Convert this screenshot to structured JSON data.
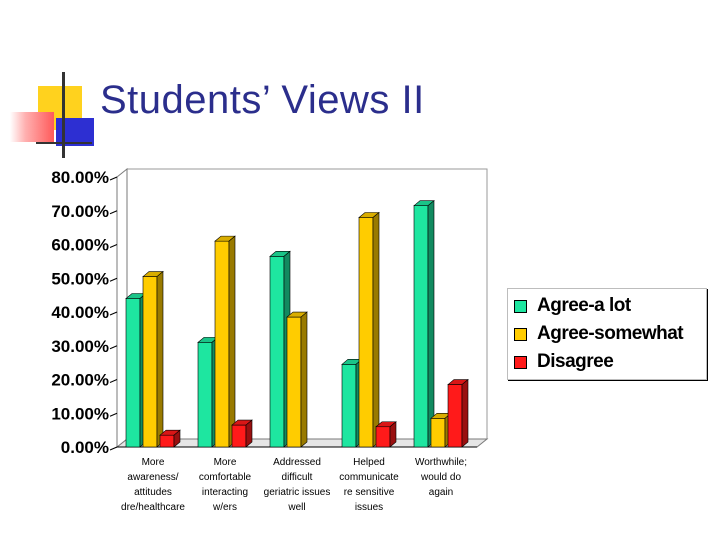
{
  "slide": {
    "title": "Students’ Views II"
  },
  "colors": {
    "title": "#2b2e8c",
    "deco_yellow": "#ffd21e",
    "deco_blue": "#2d2fd2",
    "deco_red": "#ff5a5a"
  },
  "chart_data": {
    "type": "bar",
    "categories": [
      [
        "More",
        "awareness/",
        "attitudes",
        "dre/healthcare"
      ],
      [
        "More",
        "comfortable",
        "interacting",
        "w/ers"
      ],
      [
        "Addressed",
        "difficult",
        "geriatric issues",
        "well"
      ],
      [
        "Helped",
        "communicate",
        "re sensitive",
        "issues"
      ],
      [
        "Worthwhile;",
        "would do",
        "again"
      ]
    ],
    "series": [
      {
        "name": "Agree-a lot",
        "color": "#1ee6a0",
        "values": [
          44,
          31,
          56.5,
          24.5,
          71.5
        ]
      },
      {
        "name": "Agree-somewhat",
        "color": "#ffcc00",
        "values": [
          50.5,
          61,
          38.5,
          68,
          8.5
        ]
      },
      {
        "name": "Disagree",
        "color": "#ff1a1a",
        "values": [
          3.5,
          6.5,
          0,
          6,
          18.5
        ]
      }
    ],
    "yticks": [
      "80.00%",
      "70.00%",
      "60.00%",
      "50.00%",
      "40.00%",
      "30.00%",
      "20.00%",
      "10.00%",
      "0.00%"
    ],
    "ylim": [
      0,
      80
    ],
    "legend_position": "right",
    "grid": false
  }
}
